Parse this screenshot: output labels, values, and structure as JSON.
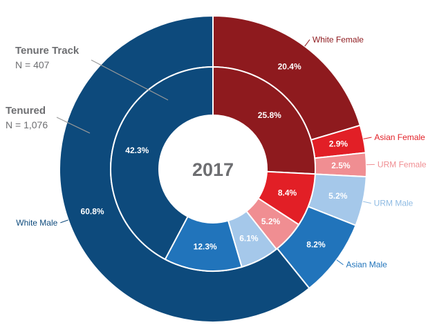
{
  "chart_data": {
    "type": "donut",
    "center_label": "2017",
    "groups": [
      {
        "name": "Tenure Track",
        "n_label": "N = 407",
        "ring": "inner"
      },
      {
        "name": "Tenured",
        "n_label": "N = 1,076",
        "ring": "outer"
      }
    ],
    "categories": [
      "White Female",
      "Asian Female",
      "URM Female",
      "URM Male",
      "Asian Male",
      "White Male"
    ],
    "colors": {
      "White Female": "#8e1a1e",
      "Asian Female": "#e21f26",
      "URM Female": "#f08e92",
      "URM Male": "#a5c8ea",
      "Asian Male": "#2174bb",
      "White Male": "#0d4a7c"
    },
    "label_colors": {
      "White Female": "#8e1a1e",
      "Asian Female": "#e21f26",
      "URM Female": "#f08e92",
      "URM Male": "#8fbbe3",
      "Asian Male": "#2174bb",
      "White Male": "#0d4a7c"
    },
    "series": [
      {
        "ring": "outer",
        "values": [
          20.4,
          2.9,
          2.5,
          5.2,
          8.2,
          60.8
        ],
        "value_labels": [
          "20.4%",
          "2.9%",
          "2.5%",
          "5.2%",
          "8.2%",
          "60.8%"
        ]
      },
      {
        "ring": "inner",
        "values": [
          25.8,
          8.4,
          5.2,
          6.1,
          12.3,
          42.3
        ],
        "value_labels": [
          "25.8%",
          "8.4%",
          "5.2%",
          "6.1%",
          "12.3%",
          "42.3%"
        ]
      }
    ]
  }
}
